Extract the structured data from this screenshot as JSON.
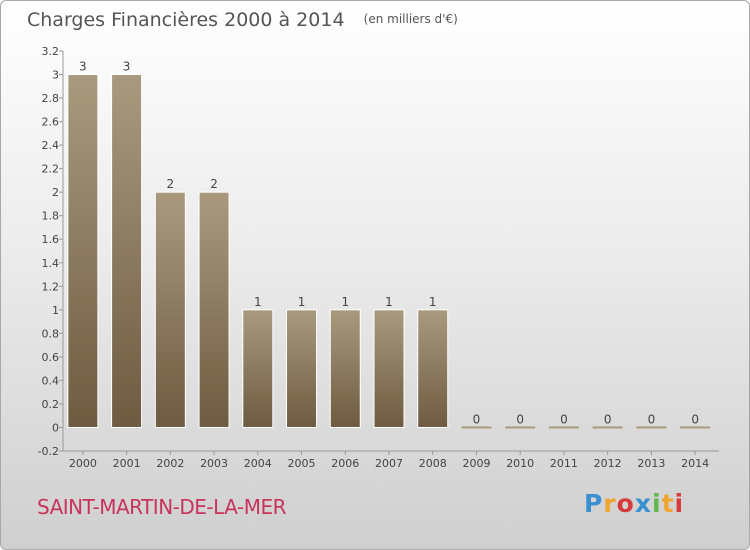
{
  "title": "Charges Financières 2000 à 2014",
  "subtitle": "(en milliers d'€)",
  "place": "SAINT-MARTIN-DE-LA-MER",
  "logo_text": "Proxiti",
  "colors": {
    "bar_top": "#a99a7e",
    "bar_bottom": "#6e5b40",
    "place": "#c8345b"
  },
  "chart_data": {
    "type": "bar",
    "categories": [
      "2000",
      "2001",
      "2002",
      "2003",
      "2004",
      "2005",
      "2006",
      "2007",
      "2008",
      "2009",
      "2010",
      "2011",
      "2012",
      "2013",
      "2014"
    ],
    "values": [
      3,
      3,
      2,
      2,
      1,
      1,
      1,
      1,
      1,
      0,
      0,
      0,
      0,
      0,
      0
    ],
    "data_labels": [
      "3",
      "3",
      "2",
      "2",
      "1",
      "1",
      "1",
      "1",
      "1",
      "0",
      "0",
      "0",
      "0",
      "0",
      "0"
    ],
    "yticks": [
      -0.2,
      0,
      0.2,
      0.4,
      0.6,
      0.8,
      1,
      1.2,
      1.4,
      1.6,
      1.8,
      2,
      2.2,
      2.4,
      2.6,
      2.8,
      3,
      3.2
    ],
    "ylim": [
      -0.2,
      3.2
    ],
    "grid": false
  }
}
